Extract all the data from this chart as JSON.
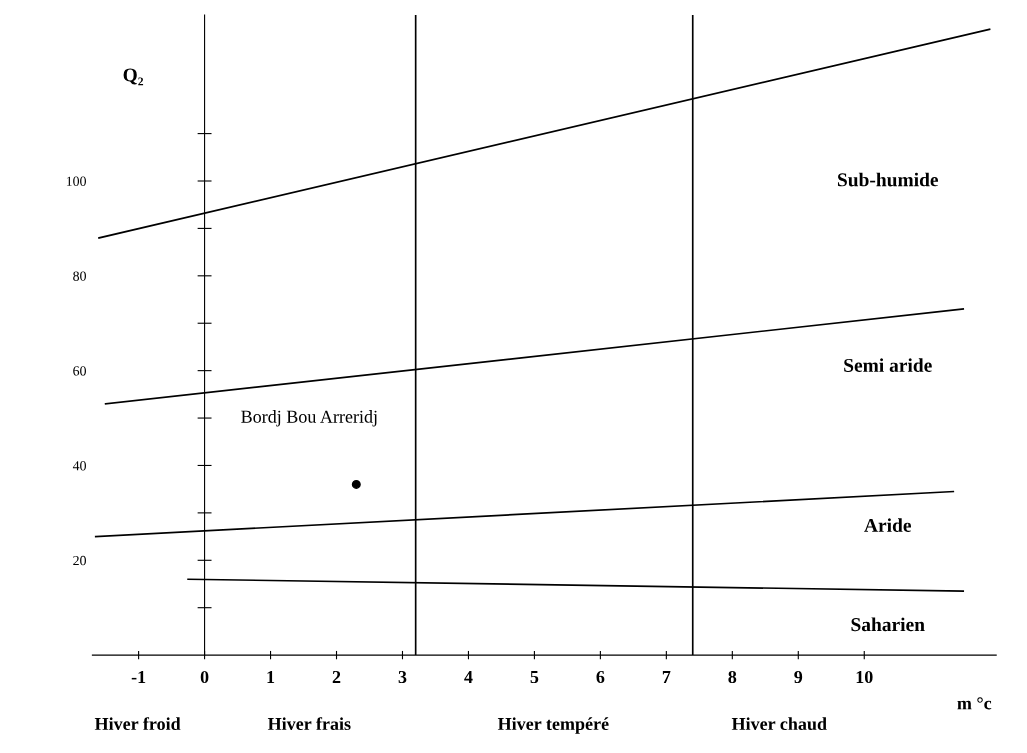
{
  "chart_data": {
    "type": "line",
    "xlabel": "m °c",
    "ylabel": "Q₂",
    "series": [
      {
        "color": "#000000",
        "x": [
          -1.6,
          11.9
        ],
        "values": [
          88,
          132
        ]
      },
      {
        "color": "#000000",
        "x": [
          -1.5,
          11.5
        ],
        "values": [
          53,
          73
        ]
      },
      {
        "color": "#000000",
        "x": [
          -1.65,
          11.35
        ],
        "values": [
          25,
          34.5
        ]
      },
      {
        "color": "#000000",
        "x": [
          -0.25,
          11.5
        ],
        "values": [
          16,
          13.5
        ]
      },
      {
        "type": "scatter",
        "color": "#000000",
        "x": [
          2.3
        ],
        "values": [
          36
        ]
      }
    ],
    "ref_lines": [
      {
        "axis": "x",
        "value": 3.2,
        "color": "#000000"
      },
      {
        "axis": "x",
        "value": 7.4,
        "color": "#000000"
      }
    ],
    "xlim": [
      -1.7,
      12.0
    ],
    "ylim": [
      0,
      135
    ],
    "xticks": [
      -1,
      0,
      1,
      2,
      3,
      4,
      5,
      6,
      7,
      8,
      9,
      10
    ],
    "yticks": [
      {
        "value": 10,
        "label": null
      },
      20,
      {
        "value": 30,
        "label": null
      },
      40,
      {
        "value": 50,
        "label": null
      },
      60,
      {
        "value": 70,
        "label": null
      },
      80,
      {
        "value": 90,
        "label": null
      },
      100,
      {
        "value": 110,
        "label": null
      }
    ],
    "line_style": "solid",
    "annotations": [
      "Sub-humide",
      "Semi aride",
      "Aride",
      "Saharien",
      "Bordj Bou Arreridj",
      "Hiver froid",
      "Hiver frais",
      "Hiver tempéré",
      "Hiver chaud"
    ]
  }
}
